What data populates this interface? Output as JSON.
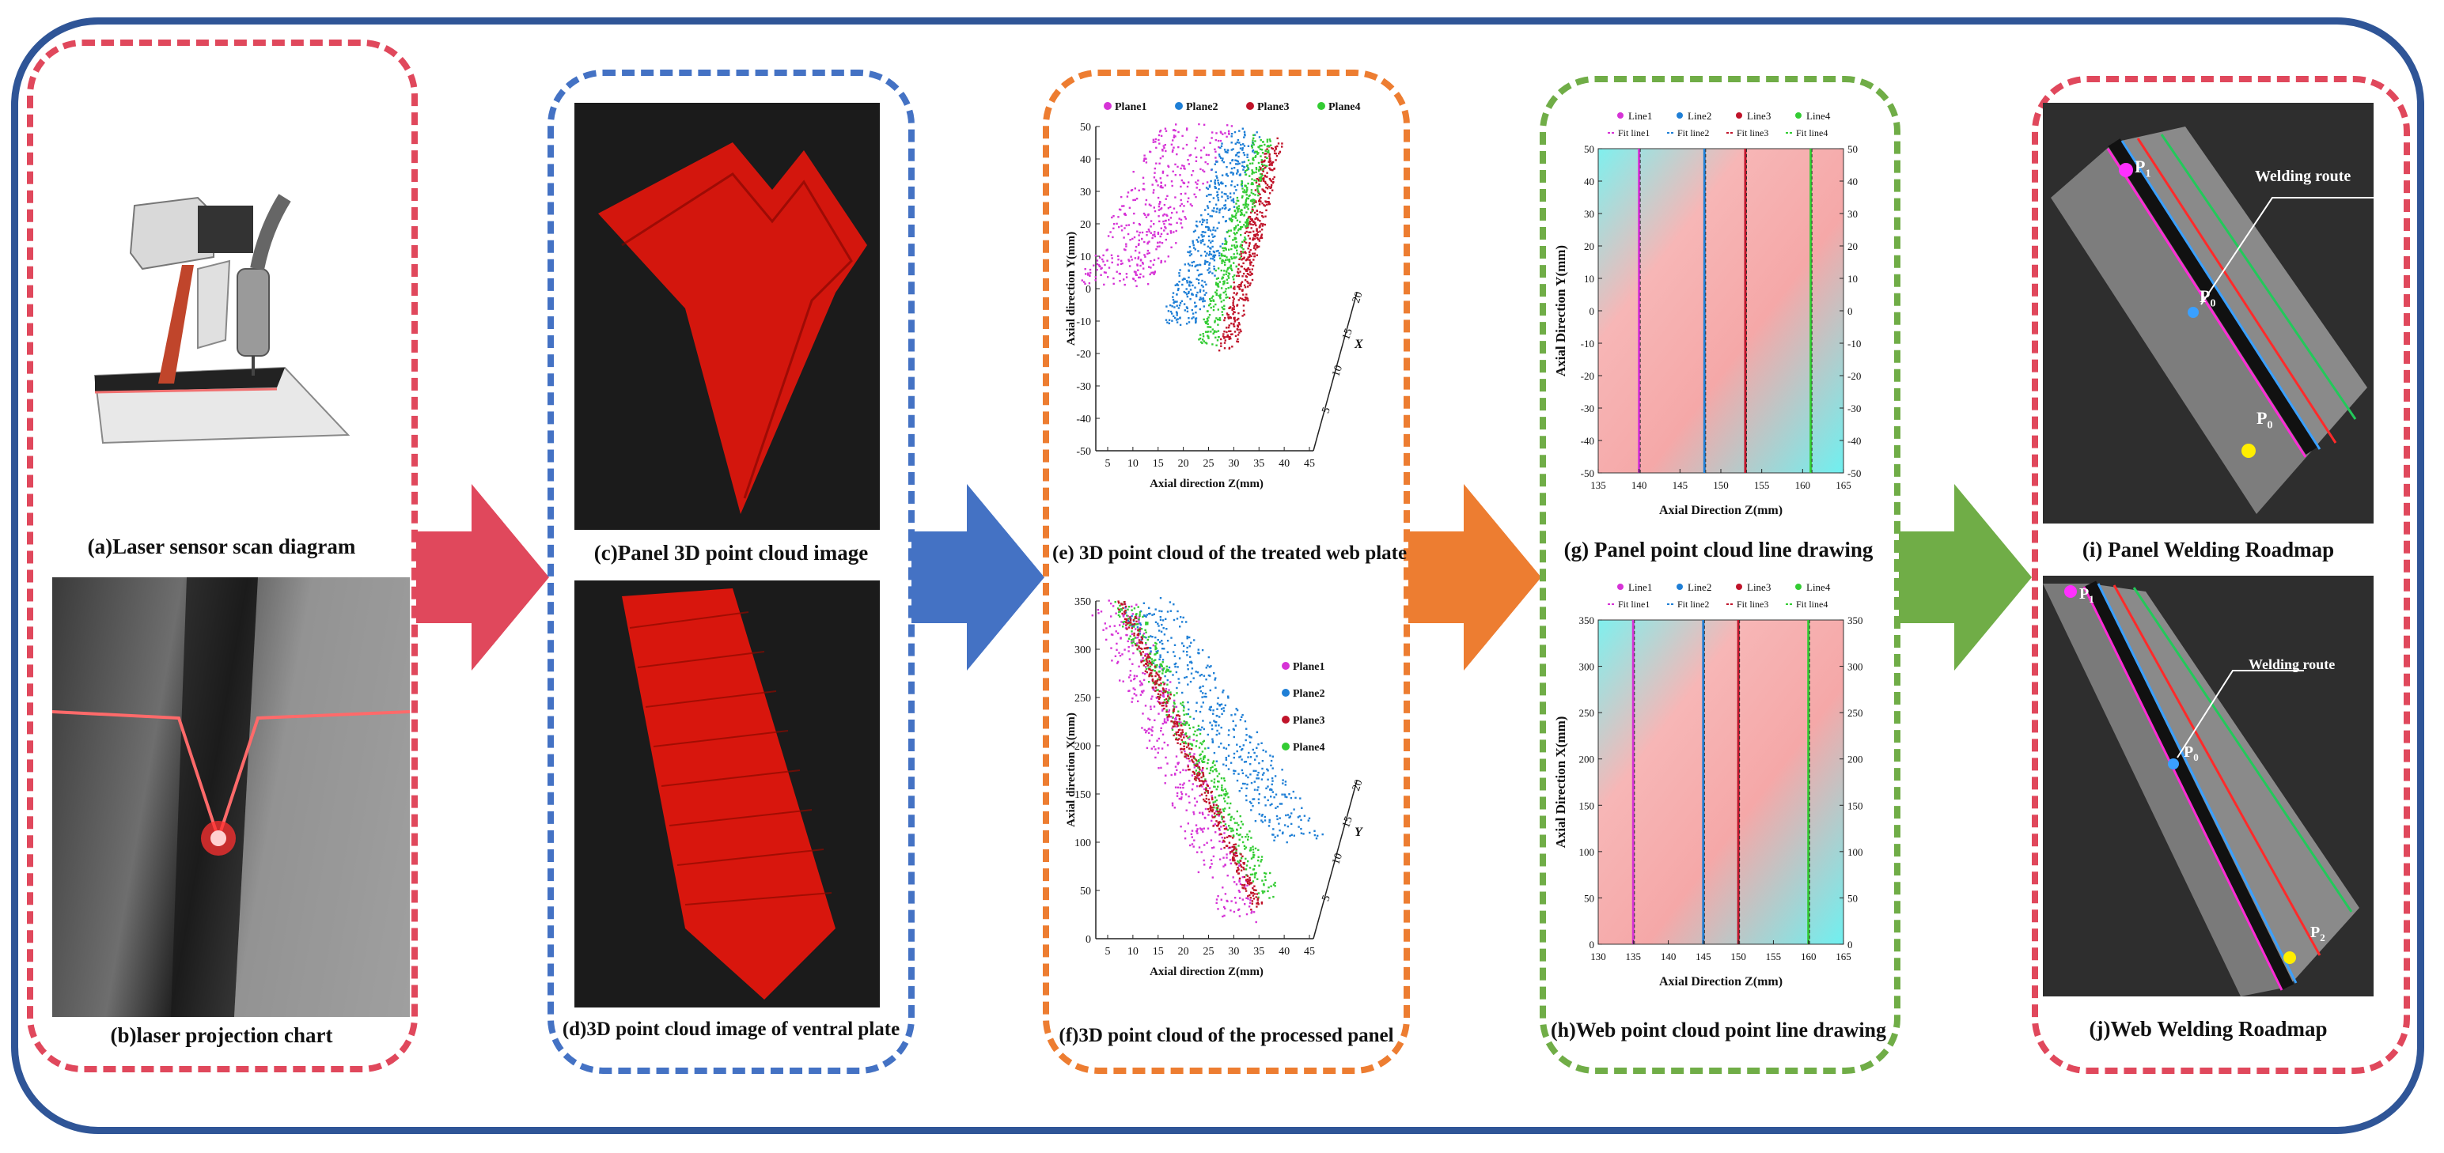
{
  "colors": {
    "frame": "#2f5597",
    "red": "#e0485c",
    "blue": "#4472c4",
    "orange": "#ed7d31",
    "green": "#70ad47"
  },
  "captions": {
    "a": "(a)Laser sensor scan diagram",
    "b": "(b)laser projection chart",
    "c": "(c)Panel 3D point cloud image",
    "d": "(d)3D point cloud image of ventral plate",
    "e": "(e) 3D point cloud of the treated web plate",
    "f": "(f)3D point cloud of the processed panel",
    "g": "(g) Panel point cloud line drawing",
    "h": "(h)Web point cloud point line drawing",
    "i": "(i) Panel Welding Roadmap",
    "j": "(j)Web Welding Roadmap"
  },
  "roadmap_i": {
    "label": "Welding route",
    "p1": "P",
    "p1_sub": "1",
    "p0": "P",
    "p0_sub": "0",
    "p2": "P",
    "p2_sub": "0"
  },
  "roadmap_j": {
    "label": "Welding route",
    "p1": "P",
    "p1_sub": "1",
    "p0": "P",
    "p0_sub": "0",
    "p2": "P",
    "p2_sub": "2"
  },
  "chart_data": [
    {
      "id": "e",
      "type": "scatter",
      "title": "3D point cloud of the treated web plate",
      "legend": [
        "Plane1",
        "Plane2",
        "Plane3",
        "Plane4"
      ],
      "series_colors": [
        "#d633d6",
        "#1f7fd6",
        "#c0142a",
        "#33cc33"
      ],
      "xlabel": "Axial direction Z(mm)",
      "ylabel": "Axial direction Y(mm)",
      "zlabel": "X",
      "xticks": [
        "5",
        "10",
        "15",
        "20",
        "25",
        "30",
        "35",
        "40",
        "45"
      ],
      "yticks": [
        "50",
        "40",
        "30",
        "20",
        "10",
        "0",
        "-10",
        "-20",
        "-30",
        "-40",
        "-50"
      ],
      "zticks": [
        "5",
        "10",
        "15",
        "20"
      ],
      "ylim": [
        -50,
        50
      ]
    },
    {
      "id": "f",
      "type": "scatter",
      "title": "3D point cloud of the processed panel",
      "legend": [
        "Plane1",
        "Plane2",
        "Plane3",
        "Plane4"
      ],
      "series_colors": [
        "#d633d6",
        "#1f7fd6",
        "#c0142a",
        "#33cc33"
      ],
      "xlabel": "Axial direction Z(mm)",
      "ylabel": "Axial direction X(mm)",
      "zlabel": "Y",
      "xticks": [
        "5",
        "10",
        "15",
        "20",
        "25",
        "30",
        "35",
        "40",
        "45"
      ],
      "yticks": [
        "350",
        "300",
        "250",
        "200",
        "150",
        "100",
        "50",
        "0"
      ],
      "zticks": [
        "5",
        "10",
        "15",
        "20"
      ],
      "ylim": [
        0,
        350
      ]
    },
    {
      "id": "g",
      "type": "line",
      "title": "Panel point cloud line drawing",
      "legend": [
        "Line1",
        "Line2",
        "Line3",
        "Line4"
      ],
      "fit_legend": [
        "Fit line1",
        "Fit line2",
        "Fit line3",
        "Fit line4"
      ],
      "series_colors": [
        "#d633d6",
        "#1f7fd6",
        "#c0142a",
        "#33cc33"
      ],
      "xlabel": "Axial Direction Z(mm)",
      "ylabel": "Axial Direction Y(mm)",
      "xlim": [
        135,
        165
      ],
      "ylim": [
        -50,
        50
      ],
      "xticks": [
        "135",
        "140",
        "145",
        "150",
        "155",
        "160",
        "165"
      ],
      "yticks": [
        "50",
        "40",
        "30",
        "20",
        "10",
        "0",
        "-10",
        "-20",
        "-30",
        "-40",
        "-50"
      ],
      "line_x": [
        140,
        148,
        153,
        161
      ]
    },
    {
      "id": "h",
      "type": "line",
      "title": "Web point cloud point line drawing",
      "legend": [
        "Line1",
        "Line2",
        "Line3",
        "Line4"
      ],
      "fit_legend": [
        "Fit line1",
        "Fit line2",
        "Fit line3",
        "Fit line4"
      ],
      "series_colors": [
        "#d633d6",
        "#1f7fd6",
        "#c0142a",
        "#33cc33"
      ],
      "xlabel": "Axial Direction Z(mm)",
      "ylabel": "Axial Direction X(mm)",
      "xlim": [
        130,
        165
      ],
      "ylim": [
        0,
        350
      ],
      "xticks": [
        "130",
        "135",
        "140",
        "145",
        "150",
        "155",
        "160",
        "165"
      ],
      "yticks": [
        "350",
        "300",
        "250",
        "200",
        "150",
        "100",
        "50",
        "0"
      ],
      "line_x": [
        135,
        145,
        150,
        160
      ]
    }
  ]
}
